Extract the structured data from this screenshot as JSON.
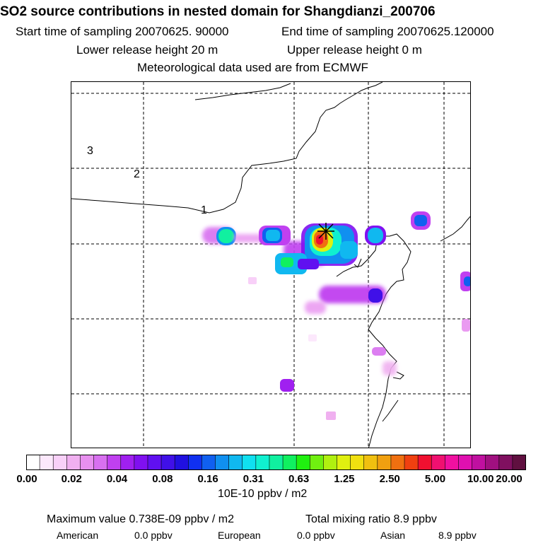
{
  "header": {
    "title": "SO2 source contributions in nested domain for Shangdianzi_200706",
    "start_label": "Start time of sampling 20070625. 90000",
    "end_label": "End time of sampling 20070625.120000",
    "lower_release": "Lower release height   20 m",
    "upper_release": "Upper release height    0 m",
    "met_data": "Meteorological data used are from ECMWF"
  },
  "map": {
    "zone_labels": [
      "3",
      "2",
      "1"
    ],
    "receptor_marker": "receptor-cross"
  },
  "colorbar": {
    "tick_labels": [
      "0.00",
      "0.02",
      "0.04",
      "0.08",
      "0.16",
      "0.31",
      "0.63",
      "1.25",
      "2.50",
      "5.00",
      "10.00",
      "20.00"
    ],
    "colors": [
      "#ffffff",
      "#fce8fc",
      "#f8d0f8",
      "#f0b0f0",
      "#e890f0",
      "#d870f0",
      "#c040f0",
      "#a020f0",
      "#8010f0",
      "#6010f0",
      "#4010e8",
      "#2010e0",
      "#1030f0",
      "#1060f0",
      "#1090f0",
      "#10b8f0",
      "#10e0f0",
      "#10f0d0",
      "#10f0a0",
      "#10f060",
      "#20f010",
      "#70f010",
      "#b0f010",
      "#e0f010",
      "#f0e010",
      "#f0c010",
      "#f0a010",
      "#f07010",
      "#f04010",
      "#f01030",
      "#f01070",
      "#f010a0",
      "#e010b0",
      "#c010a0",
      "#a01080",
      "#801060",
      "#601040"
    ],
    "unit": "10E-10 ppbv / m2"
  },
  "footer": {
    "max_value": "Maximum value  0.738E-09 ppbv / m2",
    "total_mixing": "Total mixing ratio      8.9 ppbv",
    "american_label": "American",
    "american_value": "0.0 ppbv",
    "european_label": "European",
    "european_value": "0.0 ppbv",
    "asian_label": "Asian",
    "asian_value": "8.9 ppbv"
  }
}
